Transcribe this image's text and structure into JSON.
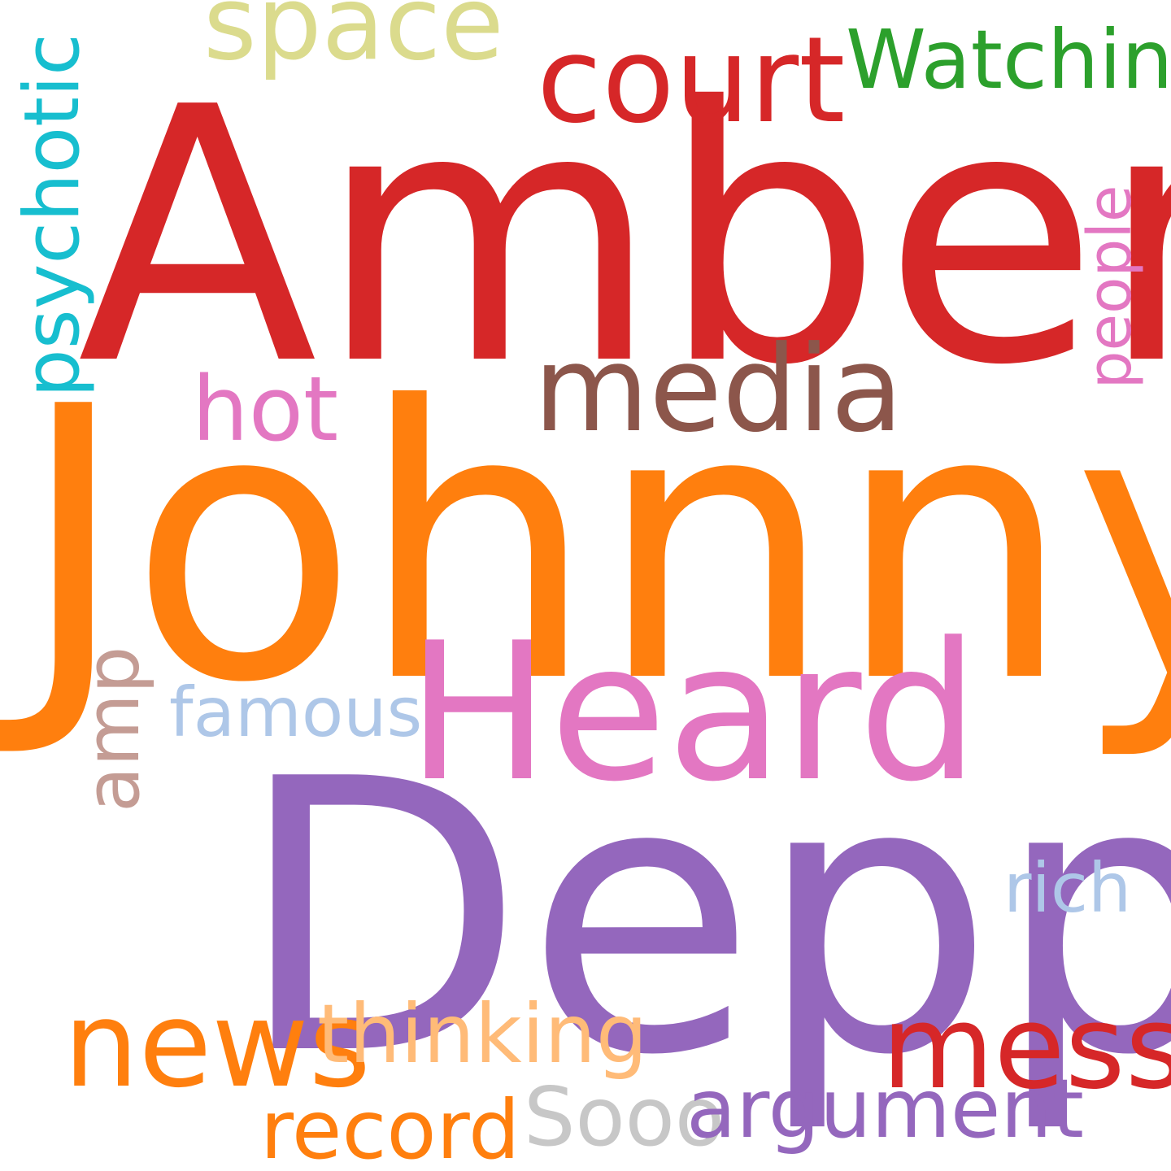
{
  "words": {
    "amber": {
      "text": "Amber",
      "color": "#d62728"
    },
    "johnny": {
      "text": "Johnny",
      "color": "#ff7f0e"
    },
    "depp": {
      "text": "Depp",
      "color": "#9467bd"
    },
    "heard": {
      "text": "Heard",
      "color": "#e377c2"
    },
    "court": {
      "text": "court",
      "color": "#d62728"
    },
    "watching": {
      "text": "Watching",
      "color": "#2ca02c"
    },
    "space": {
      "text": "space",
      "color": "#dbdb8d"
    },
    "psychotic": {
      "text": "psychotic",
      "color": "#17becf"
    },
    "media": {
      "text": "media",
      "color": "#8c564b"
    },
    "hot": {
      "text": "hot",
      "color": "#e377c2"
    },
    "people": {
      "text": "people",
      "color": "#e377c2"
    },
    "amp": {
      "text": "amp",
      "color": "#c49c94"
    },
    "famous": {
      "text": "famous",
      "color": "#aec7e8"
    },
    "rich": {
      "text": "rich",
      "color": "#aec7e8"
    },
    "news": {
      "text": "news",
      "color": "#ff7f0e"
    },
    "thinking": {
      "text": "thinking",
      "color": "#ffbb78"
    },
    "mess": {
      "text": "mess",
      "color": "#d62728"
    },
    "record": {
      "text": "record",
      "color": "#ff7f0e"
    },
    "sooo": {
      "text": "Sooo",
      "color": "#c7c7c7"
    },
    "argument": {
      "text": "argument",
      "color": "#9467bd"
    }
  }
}
